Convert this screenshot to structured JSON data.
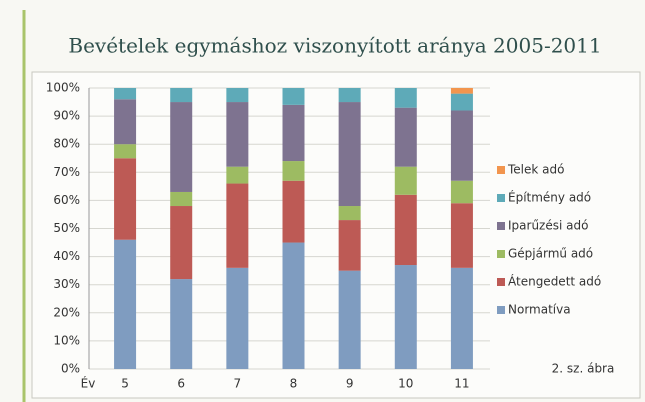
{
  "chart_data": {
    "type": "stacked_bar",
    "title": "Bevételek egymáshoz viszonyított aránya 2005-2011",
    "x_label": "Év",
    "annotation": "2. sz. ábra",
    "categories": [
      "5",
      "6",
      "7",
      "8",
      "9",
      "10",
      "11"
    ],
    "series": [
      {
        "name": "Normatíva",
        "color": "#7f9cc0",
        "values": [
          46,
          32,
          36,
          45,
          35,
          37,
          36
        ]
      },
      {
        "name": "Átengedett adó",
        "color": "#bd5a55",
        "values": [
          29,
          26,
          30,
          22,
          18,
          25,
          23
        ]
      },
      {
        "name": "Gépjármű adó",
        "color": "#9dbb62",
        "values": [
          5,
          5,
          6,
          7,
          5,
          10,
          8
        ]
      },
      {
        "name": "Iparűzési adó",
        "color": "#7e7390",
        "values": [
          16,
          32,
          23,
          20,
          37,
          21,
          25
        ]
      },
      {
        "name": "Építmény adó",
        "color": "#5eaab8",
        "values": [
          4,
          5,
          5,
          6,
          5,
          7,
          6
        ]
      },
      {
        "name": "Telek adó",
        "color": "#f2954e",
        "values": [
          0,
          0,
          0,
          0,
          0,
          0,
          2
        ]
      }
    ],
    "ylim": [
      0,
      100
    ],
    "yticks": [
      {
        "value": 0,
        "label": "0%"
      },
      {
        "value": 10,
        "label": "10%"
      },
      {
        "value": 20,
        "label": "20%"
      },
      {
        "value": 30,
        "label": "30%"
      },
      {
        "value": 40,
        "label": "40%"
      },
      {
        "value": 50,
        "label": "50%"
      },
      {
        "value": 60,
        "label": "60%"
      },
      {
        "value": 70,
        "label": "70%"
      },
      {
        "value": 80,
        "label": "80%"
      },
      {
        "value": 90,
        "label": "90%"
      },
      {
        "value": 100,
        "label": "100%"
      }
    ],
    "grid": true,
    "legend": "right"
  }
}
